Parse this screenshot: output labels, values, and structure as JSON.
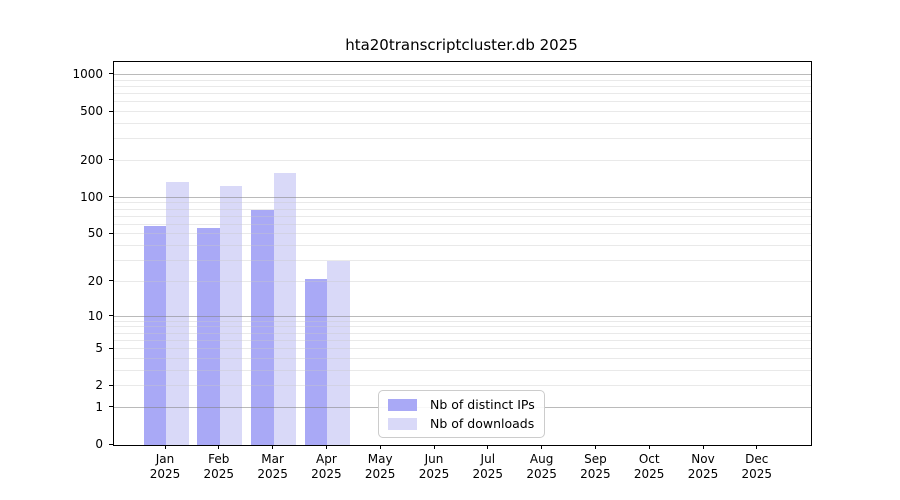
{
  "title": "hta20transcriptcluster.db 2025",
  "chart_data": {
    "type": "bar",
    "title": "hta20transcriptcluster.db 2025",
    "xlabel": "",
    "ylabel": "",
    "categories": [
      {
        "month": "Jan",
        "year": "2025"
      },
      {
        "month": "Feb",
        "year": "2025"
      },
      {
        "month": "Mar",
        "year": "2025"
      },
      {
        "month": "Apr",
        "year": "2025"
      },
      {
        "month": "May",
        "year": "2025"
      },
      {
        "month": "Jun",
        "year": "2025"
      },
      {
        "month": "Jul",
        "year": "2025"
      },
      {
        "month": "Aug",
        "year": "2025"
      },
      {
        "month": "Sep",
        "year": "2025"
      },
      {
        "month": "Oct",
        "year": "2025"
      },
      {
        "month": "Nov",
        "year": "2025"
      },
      {
        "month": "Dec",
        "year": "2025"
      }
    ],
    "series": [
      {
        "name": "Nb of distinct IPs",
        "color": "#a9a9f6",
        "values": [
          59,
          57,
          80,
          21,
          0,
          0,
          0,
          0,
          0,
          0,
          0,
          0
        ]
      },
      {
        "name": "Nb of downloads",
        "color": "#d9d9f8",
        "values": [
          134,
          124,
          160,
          30,
          0,
          0,
          0,
          0,
          0,
          0,
          0,
          0
        ]
      }
    ],
    "y_axis": {
      "scale": "log1p",
      "ylim": [
        0,
        1270
      ],
      "tick_labels": [
        "0",
        "1",
        "2",
        "5",
        "10",
        "20",
        "50",
        "100",
        "200",
        "500",
        "1000"
      ],
      "tick_values": [
        0,
        1,
        2,
        5,
        10,
        20,
        50,
        100,
        200,
        500,
        1000
      ],
      "major_gridlines": [
        1,
        10,
        100,
        1000
      ],
      "minor_gridlines": [
        2,
        3,
        4,
        5,
        6,
        7,
        8,
        9,
        20,
        30,
        40,
        50,
        60,
        70,
        80,
        90,
        200,
        300,
        400,
        500,
        600,
        700,
        800,
        900
      ]
    },
    "grid": true,
    "legend_position": "lower center"
  },
  "colors": {
    "bar_ips": "#a9a9f6",
    "bar_downloads": "#d9d9f8",
    "gridline_major": "#b9b9b9",
    "gridline_minor": "#ebebeb",
    "spine": "#000000",
    "legend_border": "#cccccc"
  }
}
